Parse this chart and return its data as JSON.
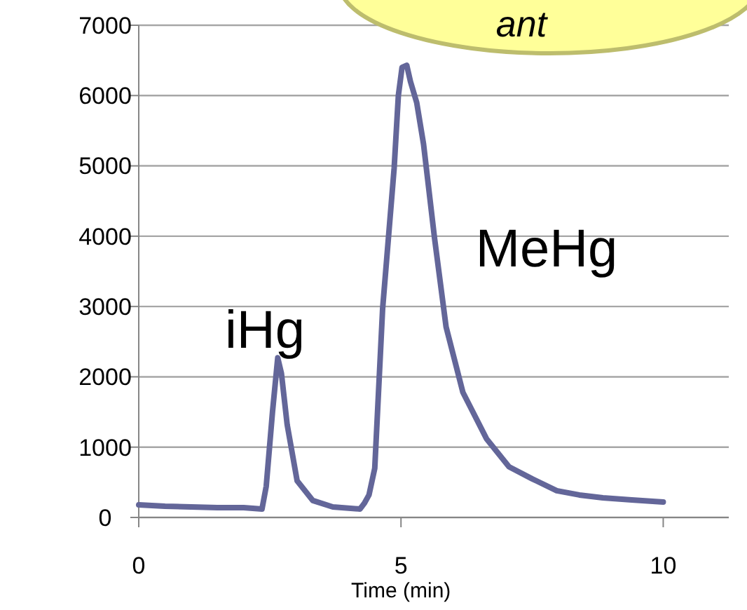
{
  "chart_data": {
    "type": "line",
    "xlabel": "Time (min)",
    "x": [
      0,
      0.5,
      1,
      1.5,
      2,
      2.35,
      2.43,
      2.55,
      2.65,
      2.72,
      2.83,
      3.02,
      3.32,
      3.7,
      4.22,
      4.3,
      4.39,
      4.5,
      4.65,
      4.87,
      4.95,
      5.02,
      5.11,
      5.18,
      5.3,
      5.43,
      5.64,
      5.86,
      6.18,
      6.63,
      7.06,
      7.5,
      7.97,
      8.4,
      8.85,
      9.4,
      10
    ],
    "series": [
      {
        "color": "#636699",
        "values": [
          180,
          160,
          150,
          140,
          140,
          120,
          440,
          1500,
          2270,
          2050,
          1320,
          520,
          240,
          150,
          120,
          200,
          320,
          700,
          2970,
          4970,
          6000,
          6400,
          6430,
          6200,
          5900,
          5310,
          3970,
          2710,
          1780,
          1120,
          720,
          550,
          380,
          320,
          280,
          250,
          220
        ]
      }
    ],
    "xlim": [
      0,
      11.25
    ],
    "xticks": [
      0,
      5,
      10
    ],
    "ylim": [
      0,
      7000
    ],
    "yticks": [
      0,
      1000,
      2000,
      3000,
      4000,
      5000,
      6000,
      7000
    ],
    "grid": "y",
    "line_style": "solid",
    "marker": "none",
    "annotations": [
      "iHg",
      "MeHg",
      "ant"
    ]
  }
}
